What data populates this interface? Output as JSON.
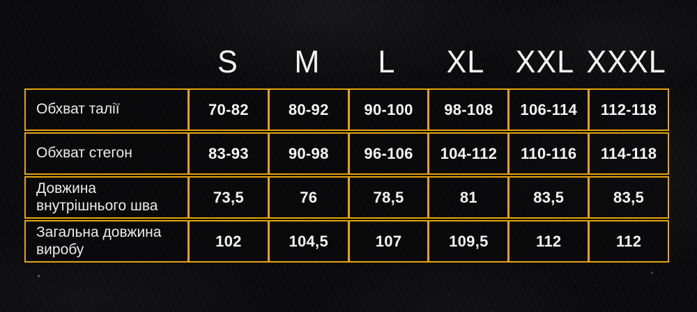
{
  "chart_data": {
    "type": "table",
    "size_headers": [
      "S",
      "M",
      "L",
      "XL",
      "XXL",
      "XXXL"
    ],
    "rows": [
      {
        "label": "Обхват талії",
        "values": [
          "70-82",
          "80-92",
          "90-100",
          "98-108",
          "106-114",
          "112-118"
        ]
      },
      {
        "label": "Обхват стегон",
        "values": [
          "83-93",
          "90-98",
          "96-106",
          "104-112",
          "110-116",
          "114-118"
        ]
      },
      {
        "label": "Довжина внутрішнього шва",
        "values": [
          "73,5",
          "76",
          "78,5",
          "81",
          "83,5",
          "83,5"
        ]
      },
      {
        "label": "Загальна довжина виробу",
        "values": [
          "102",
          "104,5",
          "107",
          "109,5",
          "112",
          "112"
        ]
      }
    ]
  },
  "colors": {
    "border_gold": "#e6a50b",
    "background": "#0a0a0c",
    "text": "#f2f2f2"
  }
}
